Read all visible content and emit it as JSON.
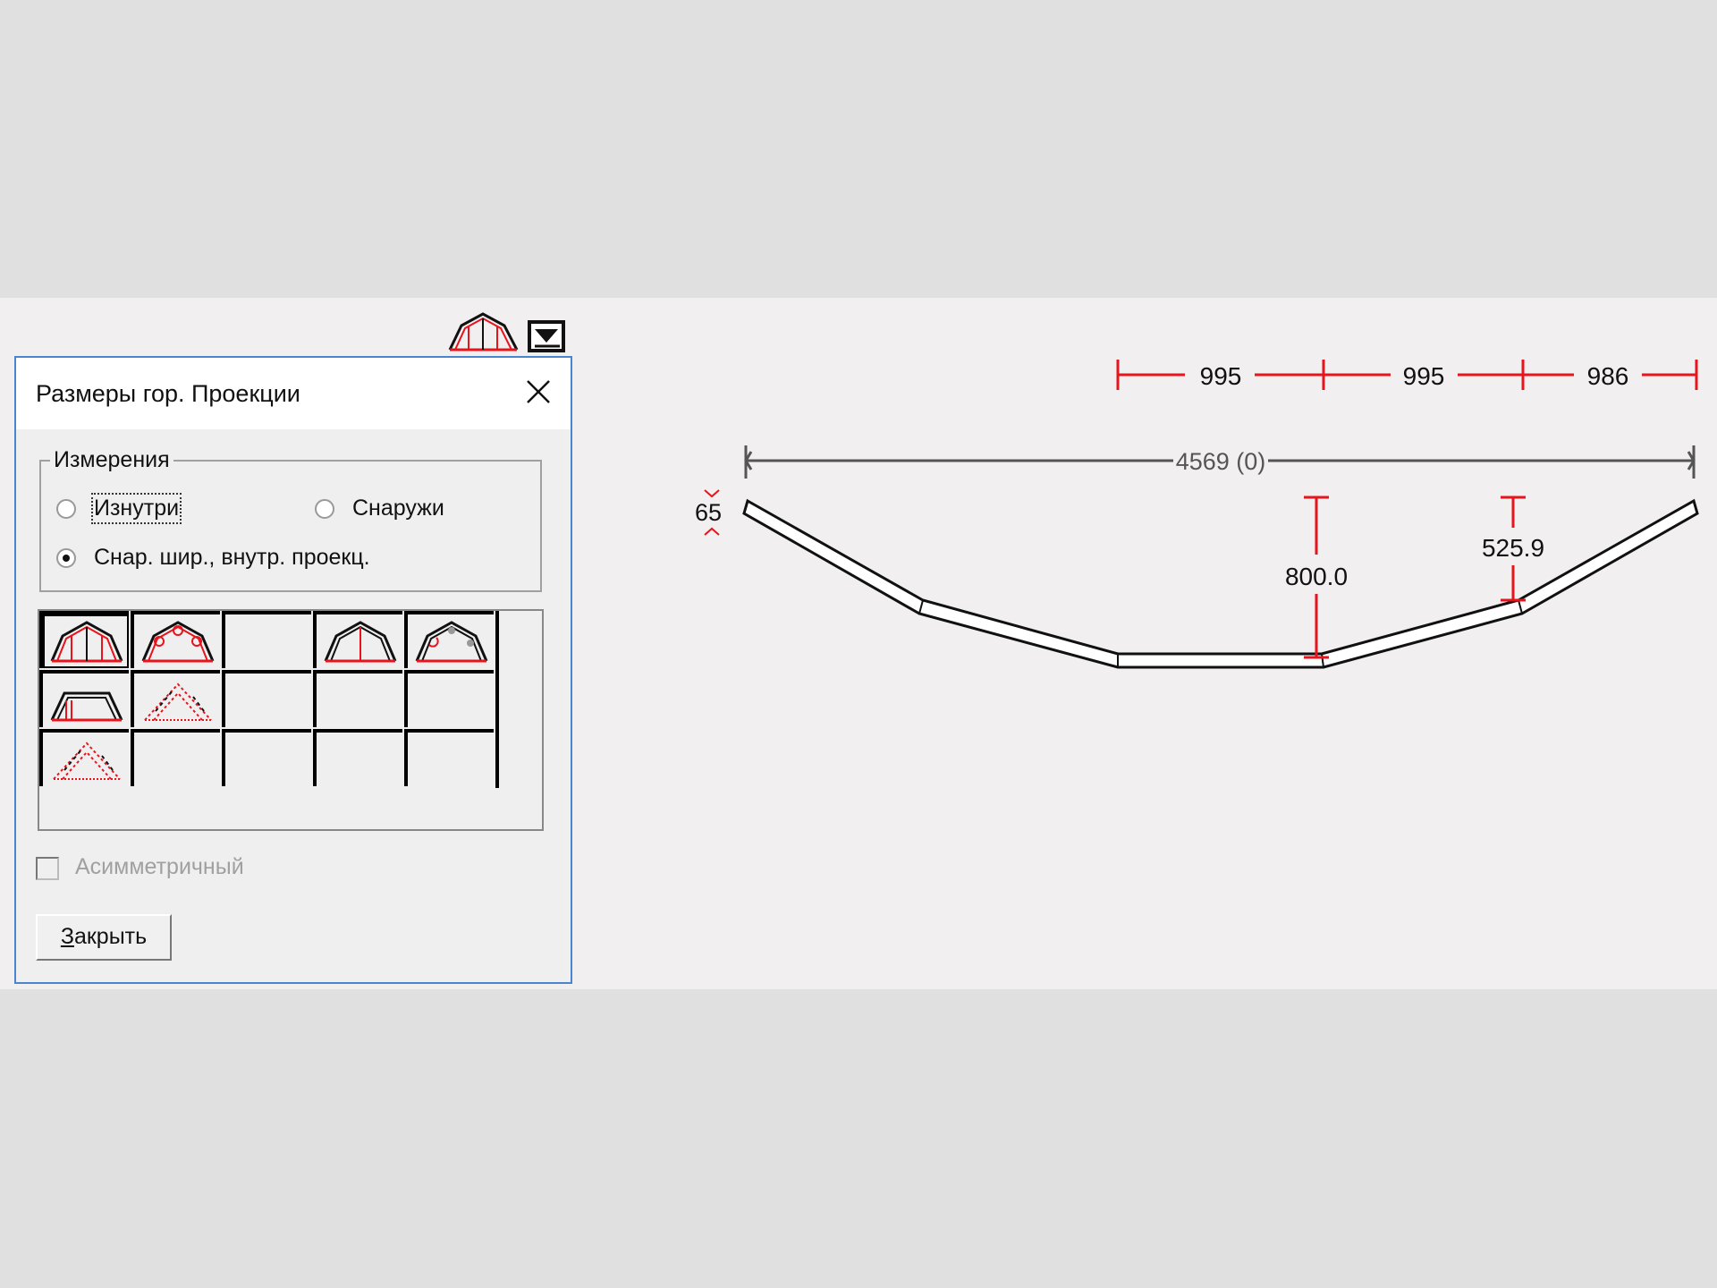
{
  "dialog": {
    "title": "Размеры  гор. Проекции",
    "group_label": "Измерения",
    "radios": [
      {
        "label": "Изнутри",
        "checked": false
      },
      {
        "label": "Снаружи",
        "checked": false
      },
      {
        "label": "Снар. шир., внутр. проекц.",
        "checked": true
      }
    ],
    "profile_grid": [
      [
        "mansard-frame-icon",
        "mansard-arch-icon",
        "",
        "mansard-center-post-icon",
        "mansard-corner-icon"
      ],
      [
        "trapezoid-frame-icon",
        "triangle-dotted-icon",
        "",
        "",
        ""
      ],
      [
        "triangle-dotted-icon-2",
        "",
        "",
        "",
        ""
      ]
    ],
    "checkbox": {
      "label": "Асимметричный",
      "checked": false,
      "enabled": false
    },
    "close_button": {
      "accel": "З",
      "rest": "акрыть"
    }
  },
  "toolbar": {
    "icons": [
      "mansard-profile-icon",
      "dropdown-icon"
    ]
  },
  "drawing": {
    "segment_dims": [
      "995",
      "995",
      "986"
    ],
    "overall_dim": "4569 (0)",
    "thickness_dim": "65",
    "height_dims": [
      "800.0",
      "525.9"
    ],
    "colors": {
      "dimension": "#e8141c",
      "outline": "#111111",
      "overall": "#555555"
    }
  }
}
